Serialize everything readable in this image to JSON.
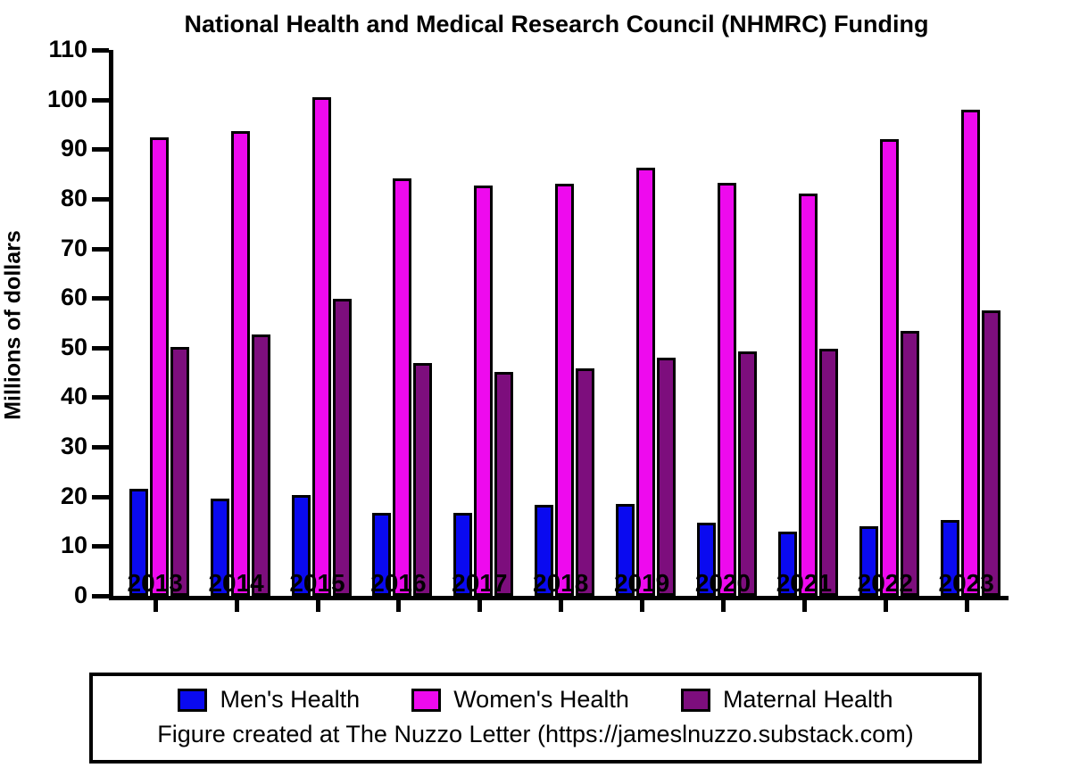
{
  "figure": {
    "title": "National Health and Medical Research Council (NHMRC) Funding",
    "footer": "Figure created at The Nuzzo Letter (https://jameslnuzzo.substack.com)"
  },
  "chart_data": {
    "type": "bar",
    "title": "National Health and Medical Research Council (NHMRC) Funding",
    "xlabel": "",
    "ylabel": "Millions of dollars",
    "ylim": [
      0,
      110
    ],
    "y_ticks": [
      0,
      10,
      20,
      30,
      40,
      50,
      60,
      70,
      80,
      90,
      100,
      110
    ],
    "grid": false,
    "legend_position": "bottom",
    "categories": [
      "2013",
      "2014",
      "2015",
      "2016",
      "2017",
      "2018",
      "2019",
      "2020",
      "2021",
      "2022",
      "2023"
    ],
    "series": [
      {
        "name": "Men's Health",
        "color": "#0a0af0",
        "values": [
          21.6,
          19.6,
          20.3,
          16.8,
          16.8,
          18.4,
          18.5,
          14.8,
          12.9,
          14.0,
          15.2
        ]
      },
      {
        "name": "Women's Health",
        "color": "#ee0aee",
        "values": [
          92.4,
          93.6,
          100.4,
          84.2,
          82.7,
          83.1,
          86.3,
          83.2,
          81.0,
          92.0,
          98.0
        ]
      },
      {
        "name": "Maternal Health",
        "color": "#7d0e7d",
        "values": [
          50.1,
          52.6,
          59.8,
          47.0,
          45.2,
          45.8,
          48.0,
          49.2,
          49.8,
          53.3,
          57.5
        ]
      }
    ],
    "annotations": [
      "Figure created at The Nuzzo Letter (https://jameslnuzzo.substack.com)"
    ]
  },
  "colors": {
    "axis": "#000000",
    "text": "#000000",
    "background": "#ffffff"
  }
}
